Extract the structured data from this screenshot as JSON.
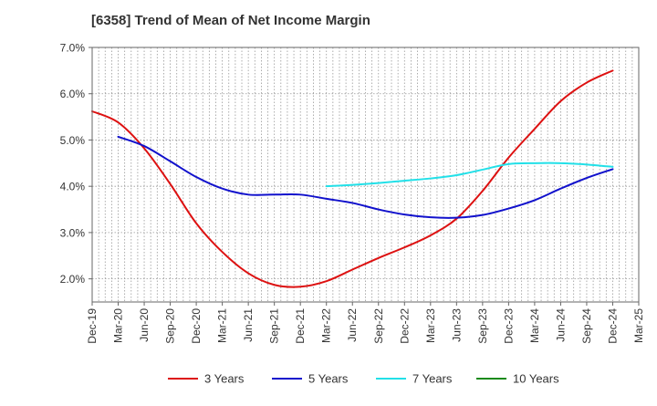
{
  "chart_data": {
    "type": "line",
    "title": "[6358]  Trend of Mean of Net Income Margin",
    "xlabel": "",
    "ylabel": "",
    "ylim": [
      1.5,
      7.0
    ],
    "yticks": [
      2.0,
      3.0,
      4.0,
      5.0,
      6.0,
      7.0
    ],
    "ytick_labels": [
      "2.0%",
      "3.0%",
      "4.0%",
      "5.0%",
      "6.0%",
      "7.0%"
    ],
    "x_tick_labels": [
      "Dec-19",
      "Mar-20",
      "Jun-20",
      "Sep-20",
      "Dec-20",
      "Mar-21",
      "Jun-21",
      "Sep-21",
      "Dec-21",
      "Mar-22",
      "Jun-22",
      "Sep-22",
      "Dec-22",
      "Mar-23",
      "Jun-23",
      "Sep-23",
      "Dec-23",
      "Mar-24",
      "Jun-24",
      "Sep-24",
      "Dec-24",
      "Mar-25"
    ],
    "grid": true,
    "legend_position": "bottom",
    "series": [
      {
        "name": "3 Years",
        "color": "#dd1111",
        "x": [
          "Dec-19",
          "Mar-20",
          "Jun-20",
          "Sep-20",
          "Dec-20",
          "Mar-21",
          "Jun-21",
          "Sep-21",
          "Dec-21",
          "Mar-22",
          "Jun-22",
          "Sep-22",
          "Dec-22",
          "Mar-23",
          "Jun-23",
          "Sep-23",
          "Dec-23",
          "Mar-24",
          "Jun-24",
          "Sep-24",
          "Dec-24"
        ],
        "values": [
          5.62,
          5.38,
          4.82,
          4.05,
          3.2,
          2.58,
          2.12,
          1.87,
          1.83,
          1.95,
          2.2,
          2.45,
          2.68,
          2.94,
          3.3,
          3.9,
          4.62,
          5.24,
          5.84,
          6.24,
          6.5
        ]
      },
      {
        "name": "5 Years",
        "color": "#1111cc",
        "x": [
          "Mar-20",
          "Jun-20",
          "Sep-20",
          "Dec-20",
          "Mar-21",
          "Jun-21",
          "Sep-21",
          "Dec-21",
          "Mar-22",
          "Jun-22",
          "Sep-22",
          "Dec-22",
          "Mar-23",
          "Jun-23",
          "Sep-23",
          "Dec-23",
          "Mar-24",
          "Jun-24",
          "Sep-24",
          "Dec-24"
        ],
        "values": [
          5.07,
          4.87,
          4.54,
          4.2,
          3.95,
          3.82,
          3.82,
          3.82,
          3.73,
          3.64,
          3.5,
          3.39,
          3.33,
          3.32,
          3.38,
          3.52,
          3.7,
          3.95,
          4.18,
          4.37
        ]
      },
      {
        "name": "7 Years",
        "color": "#22e0e8",
        "x": [
          "Mar-22",
          "Jun-22",
          "Sep-22",
          "Dec-22",
          "Mar-23",
          "Jun-23",
          "Sep-23",
          "Dec-23",
          "Mar-24",
          "Jun-24",
          "Sep-24",
          "Dec-24"
        ],
        "values": [
          4.0,
          4.03,
          4.07,
          4.12,
          4.17,
          4.24,
          4.36,
          4.48,
          4.5,
          4.5,
          4.47,
          4.42
        ]
      },
      {
        "name": "10 Years",
        "color": "#1a8a1a",
        "x": [],
        "values": []
      }
    ]
  }
}
